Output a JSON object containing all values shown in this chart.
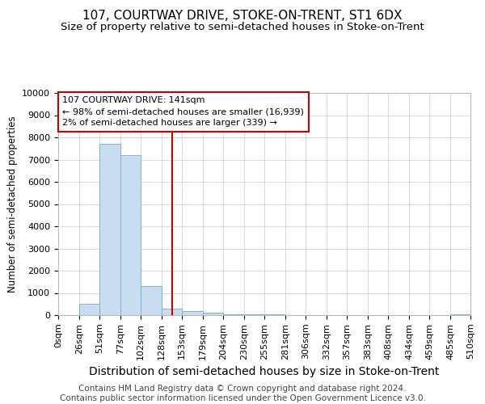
{
  "title": "107, COURTWAY DRIVE, STOKE-ON-TRENT, ST1 6DX",
  "subtitle": "Size of property relative to semi-detached houses in Stoke-on-Trent",
  "xlabel": "Distribution of semi-detached houses by size in Stoke-on-Trent",
  "ylabel": "Number of semi-detached properties",
  "footnote": "Contains HM Land Registry data © Crown copyright and database right 2024.\nContains public sector information licensed under the Open Government Licence v3.0.",
  "bar_left_edges": [
    0,
    26,
    51,
    77,
    102,
    128,
    153,
    179,
    204,
    230,
    255,
    281,
    306,
    332,
    357,
    383,
    408,
    434,
    459,
    485
  ],
  "bar_widths": [
    26,
    25,
    26,
    25,
    26,
    25,
    26,
    25,
    26,
    25,
    26,
    25,
    26,
    25,
    26,
    25,
    26,
    25,
    26,
    25
  ],
  "bar_heights": [
    0,
    500,
    7700,
    7200,
    1300,
    300,
    200,
    100,
    50,
    30,
    20,
    10,
    8,
    5,
    3,
    2,
    1,
    1,
    1,
    50
  ],
  "bar_color": "#c9ddf0",
  "bar_edge_color": "#6aaed6",
  "xlim": [
    0,
    510
  ],
  "ylim": [
    0,
    10000
  ],
  "yticks": [
    0,
    1000,
    2000,
    3000,
    4000,
    5000,
    6000,
    7000,
    8000,
    9000,
    10000
  ],
  "xtick_labels": [
    "0sqm",
    "26sqm",
    "51sqm",
    "77sqm",
    "102sqm",
    "128sqm",
    "153sqm",
    "179sqm",
    "204sqm",
    "230sqm",
    "255sqm",
    "281sqm",
    "306sqm",
    "332sqm",
    "357sqm",
    "383sqm",
    "408sqm",
    "434sqm",
    "459sqm",
    "485sqm",
    "510sqm"
  ],
  "xtick_positions": [
    0,
    26,
    51,
    77,
    102,
    128,
    153,
    179,
    204,
    230,
    255,
    281,
    306,
    332,
    357,
    383,
    408,
    434,
    459,
    485,
    510
  ],
  "property_size": 141,
  "vline_color": "#cc0000",
  "annotation_text": "107 COURTWAY DRIVE: 141sqm\n← 98% of semi-detached houses are smaller (16,939)\n2% of semi-detached houses are larger (339) →",
  "annotation_box_color": "#ffffff",
  "annotation_box_edge_color": "#cc0000",
  "grid_color": "#cccccc",
  "background_color": "#ffffff",
  "title_fontsize": 11,
  "subtitle_fontsize": 9.5,
  "xlabel_fontsize": 10,
  "ylabel_fontsize": 8.5,
  "footnote_fontsize": 7.5,
  "tick_fontsize": 8,
  "annot_fontsize": 8
}
